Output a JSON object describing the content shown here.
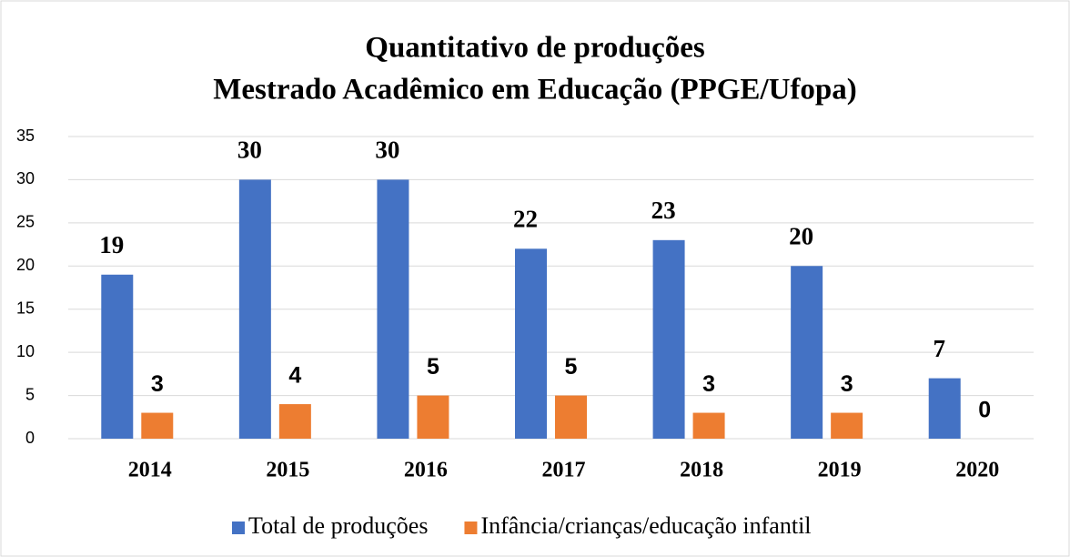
{
  "chart_data": {
    "type": "bar",
    "title": [
      "Quantitativo de produções",
      "Mestrado Acadêmico em Educação (PPGE/Ufopa)"
    ],
    "categories": [
      "2014",
      "2015",
      "2016",
      "2017",
      "2018",
      "2019",
      "2020"
    ],
    "series": [
      {
        "name": "Total de produções",
        "color": "#4472c4",
        "values": [
          19,
          30,
          30,
          22,
          23,
          20,
          7
        ]
      },
      {
        "name": "Infância/crianças/educação infantil",
        "color": "#ed7d31",
        "values": [
          3,
          4,
          5,
          5,
          3,
          3,
          0
        ]
      }
    ],
    "ylim": [
      0,
      35
    ],
    "yticks": [
      0,
      5,
      10,
      15,
      20,
      25,
      30,
      35
    ],
    "grid": true,
    "legend": "bottom"
  }
}
